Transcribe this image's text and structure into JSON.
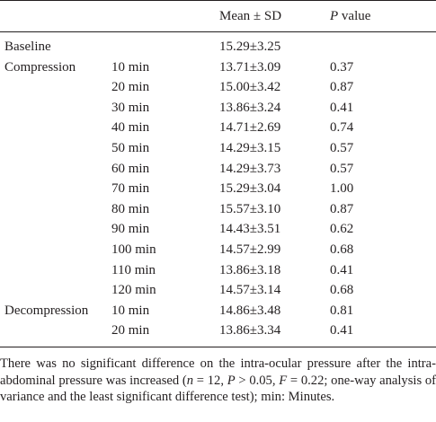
{
  "table": {
    "headers": {
      "group": "",
      "time": "",
      "mean": "Mean ± SD",
      "p_italic": "P",
      "p_rest": " value"
    },
    "rows": [
      {
        "group": "Baseline",
        "time": "",
        "mean": "15.29±3.25",
        "p": ""
      },
      {
        "group": "Compression",
        "time": "10 min",
        "mean": "13.71±3.09",
        "p": "0.37"
      },
      {
        "group": "",
        "time": "20 min",
        "mean": "15.00±3.42",
        "p": "0.87"
      },
      {
        "group": "",
        "time": "30 min",
        "mean": "13.86±3.24",
        "p": "0.41"
      },
      {
        "group": "",
        "time": "40 min",
        "mean": "14.71±2.69",
        "p": "0.74"
      },
      {
        "group": "",
        "time": "50 min",
        "mean": "14.29±3.15",
        "p": "0.57"
      },
      {
        "group": "",
        "time": "60 min",
        "mean": "14.29±3.73",
        "p": "0.57"
      },
      {
        "group": "",
        "time": "70 min",
        "mean": "15.29±3.04",
        "p": "1.00"
      },
      {
        "group": "",
        "time": "80 min",
        "mean": "15.57±3.10",
        "p": "0.87"
      },
      {
        "group": "",
        "time": "90 min",
        "mean": "14.43±3.51",
        "p": "0.62"
      },
      {
        "group": "",
        "time": "100 min",
        "mean": "14.57±2.99",
        "p": "0.68"
      },
      {
        "group": "",
        "time": "110 min",
        "mean": "13.86±3.18",
        "p": "0.41"
      },
      {
        "group": "",
        "time": "120 min",
        "mean": "14.57±3.14",
        "p": "0.68"
      },
      {
        "group": "Decompression",
        "time": "10 min",
        "mean": "14.86±3.48",
        "p": "0.81"
      },
      {
        "group": "",
        "time": "20 min",
        "mean": "13.86±3.34",
        "p": "0.41"
      }
    ]
  },
  "footnote": {
    "text_1": "There was no significant difference on the intra-ocular pressure after the intra-abdominal pressure was increased (",
    "n_sym": "n",
    "text_2": " = 12, ",
    "p_sym": "P",
    "text_3": " > 0.05, ",
    "f_sym": "F",
    "text_4": " = 0.22; one-way analysis of variance and the least significant difference test); min: Minutes."
  }
}
